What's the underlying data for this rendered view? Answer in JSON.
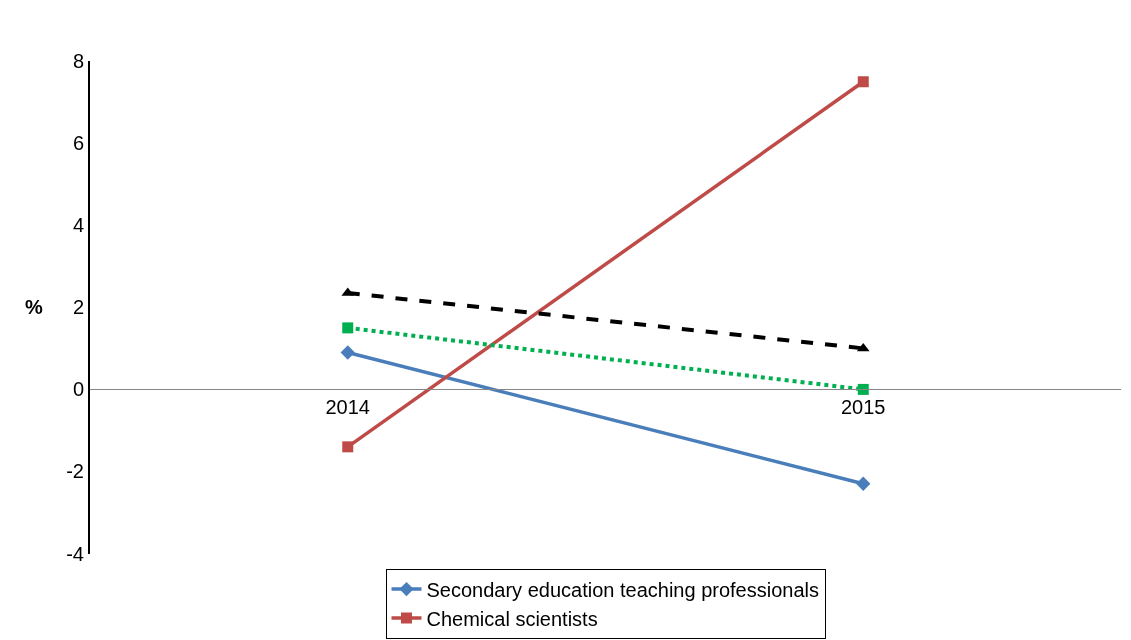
{
  "chart_data": {
    "type": "line",
    "ylabel": "%",
    "categories": [
      "2014",
      "2015"
    ],
    "series": [
      {
        "name": "Secondary education teaching professionals",
        "color": "#4a7ebb",
        "values": [
          0.9,
          -2.3
        ],
        "marker": "diamond",
        "line_style": "solid"
      },
      {
        "name": "Chemical scientists",
        "color": "#be4b48",
        "values": [
          -1.4,
          7.5
        ],
        "marker": "square",
        "line_style": "solid"
      },
      {
        "color": "#000000",
        "values": [
          2.35,
          1.0
        ],
        "marker": "triangle",
        "line_style": "dashed"
      },
      {
        "color": "#00b050",
        "values": [
          1.5,
          0.0
        ],
        "marker": "square",
        "line_style": "dotted"
      }
    ],
    "ylim": [
      -4,
      8
    ],
    "yticks": [
      -4,
      -2,
      0,
      2,
      4,
      6,
      8
    ],
    "legend": "bottom"
  }
}
